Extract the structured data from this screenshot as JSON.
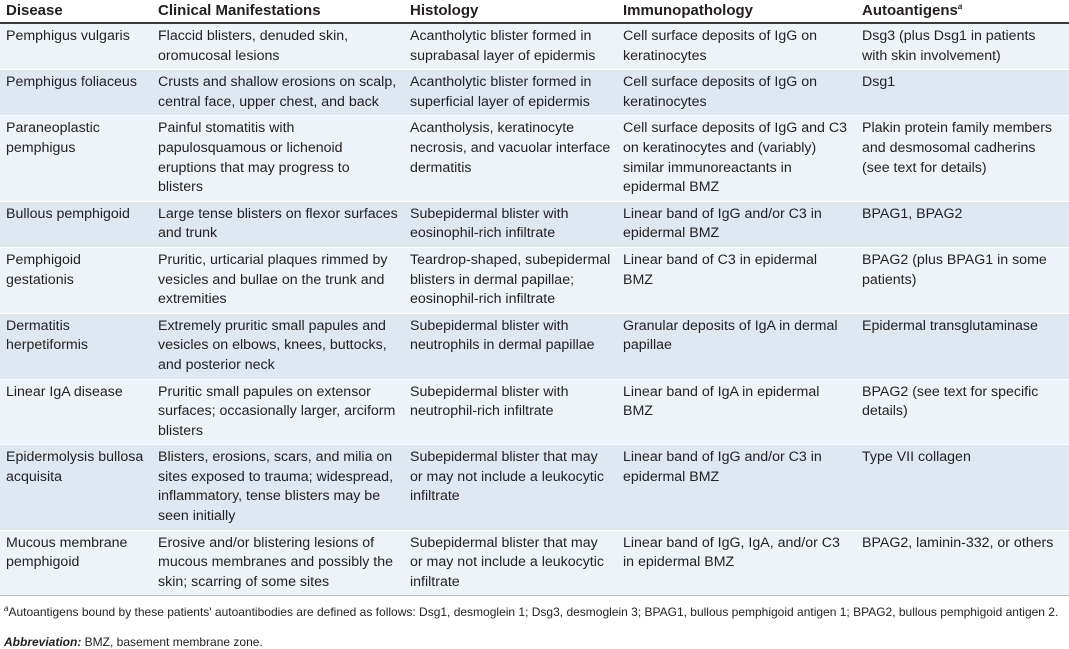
{
  "headers": [
    "Disease",
    "Clinical Manifestations",
    "Histology",
    "Immunopathology",
    "Autoantigens"
  ],
  "header_footnote_mark": "a",
  "rows": [
    [
      "Pemphigus vulgaris",
      "Flaccid blisters, denuded skin, oromucosal lesions",
      "Acantholytic blister formed in suprabasal layer of epidermis",
      "Cell surface deposits of IgG on keratinocytes",
      "Dsg3 (plus Dsg1 in patients with skin involvement)"
    ],
    [
      "Pemphigus foliaceus",
      "Crusts and shallow erosions on scalp, central face, upper chest, and back",
      "Acantholytic blister formed in superficial layer of epidermis",
      "Cell surface deposits of IgG on keratinocytes",
      "Dsg1"
    ],
    [
      "Paraneoplastic pemphigus",
      "Painful stomatitis with papulosquamous or lichenoid eruptions that may progress to blisters",
      "Acantholysis, keratinocyte necrosis, and vacuolar interface dermatitis",
      "Cell surface deposits of IgG and C3 on keratinocytes and (variably) similar immunoreactants in epidermal BMZ",
      "Plakin protein family members and desmosomal cadherins (see text for details)"
    ],
    [
      "Bullous pemphigoid",
      "Large tense blisters on flexor surfaces and trunk",
      "Subepidermal blister with eosinophil-rich infiltrate",
      "Linear band of IgG and/or C3 in epidermal BMZ",
      "BPAG1, BPAG2"
    ],
    [
      "Pemphigoid gestationis",
      "Pruritic, urticarial plaques rimmed by vesicles and bullae on the trunk and extremities",
      "Teardrop-shaped, subepidermal blisters in dermal papillae; eosinophil-rich infiltrate",
      "Linear band of C3 in epidermal BMZ",
      "BPAG2 (plus BPAG1 in some patients)"
    ],
    [
      "Dermatitis herpetiformis",
      "Extremely pruritic small papules and vesicles on elbows, knees, buttocks, and posterior neck",
      "Subepidermal blister with neutrophils in dermal papillae",
      "Granular deposits of IgA in dermal papillae",
      "Epidermal transglutaminase"
    ],
    [
      "Linear IgA disease",
      "Pruritic small papules on extensor surfaces; occasionally larger, arciform blisters",
      "Subepidermal blister with neutrophil-rich infiltrate",
      "Linear band of IgA in epidermal BMZ",
      "BPAG2 (see text for specific details)"
    ],
    [
      "Epidermolysis bullosa acquisita",
      "Blisters, erosions, scars, and milia on sites exposed to trauma; widespread, inflammatory, tense blisters may be seen initially",
      "Subepidermal blister that may or may not include a leukocytic infiltrate",
      "Linear band of IgG and/or C3 in epidermal BMZ",
      "Type VII collagen"
    ],
    [
      "Mucous membrane pemphigoid",
      "Erosive and/or blistering lesions of mucous membranes and possibly the skin; scarring of some sites",
      "Subepidermal blister that may or may not include a leukocytic infiltrate",
      "Linear band of IgG, IgA, and/or C3 in epidermal BMZ",
      "BPAG2, laminin-332, or others"
    ]
  ],
  "footnote_mark": "a",
  "footnote": "Autoantigens bound by these patients' autoantibodies are defined as follows: Dsg1, desmoglein 1; Dsg3, desmoglein 3; BPAG1, bullous pemphigoid antigen 1; BPAG2, bullous pemphigoid antigen 2.",
  "abbreviation_label": "Abbreviation:",
  "abbreviation_text": " BMZ, basement membrane zone.",
  "colors": {
    "row_light": "#eef3f9",
    "row_dark": "#dfe7f1",
    "header_rule": "#3a3a3a"
  }
}
